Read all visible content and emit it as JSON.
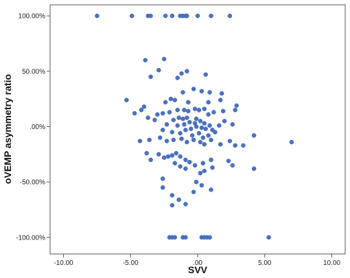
{
  "chart_data": {
    "type": "scatter",
    "title": "",
    "xlabel": "SVV",
    "ylabel": "oVEMP asymmetry ratio",
    "xlim": [
      -11,
      11
    ],
    "ylim": [
      -115,
      110
    ],
    "x_ticks": [
      -10,
      -5,
      0,
      5,
      10
    ],
    "x_tick_labels": [
      "-10.00",
      "-5.00",
      ".00",
      "5.00",
      "10.00"
    ],
    "y_ticks": [
      100,
      50,
      0,
      -50,
      -100
    ],
    "y_tick_labels": [
      "100.00%",
      "50.00%",
      ".00%",
      "-50.00%",
      "-100.00%"
    ],
    "grid": false,
    "legend": "none",
    "marker_color": "#4a72c4",
    "series": [
      {
        "points": [
          [
            -7.5,
            100
          ],
          [
            -4.9,
            100
          ],
          [
            -3.7,
            100
          ],
          [
            -3.5,
            100
          ],
          [
            -2.4,
            100
          ],
          [
            -1.9,
            100
          ],
          [
            -1.3,
            100
          ],
          [
            -1.1,
            100
          ],
          [
            -0.9,
            100
          ],
          [
            -0.8,
            100
          ],
          [
            0.0,
            100
          ],
          [
            1.0,
            100
          ],
          [
            2.4,
            100
          ],
          [
            -2.5,
            61
          ],
          [
            -3.9,
            60
          ],
          [
            -2.9,
            51
          ],
          [
            -1.2,
            48
          ],
          [
            -0.8,
            50
          ],
          [
            0.6,
            47
          ],
          [
            -3.5,
            45
          ],
          [
            -1.5,
            44
          ],
          [
            -0.3,
            34
          ],
          [
            0.3,
            32
          ],
          [
            0.9,
            31
          ],
          [
            -1.1,
            31
          ],
          [
            1.8,
            30
          ],
          [
            -5.3,
            24
          ],
          [
            -2.0,
            25
          ],
          [
            -1.7,
            24
          ],
          [
            -2.4,
            22
          ],
          [
            -0.7,
            22
          ],
          [
            0.8,
            22
          ],
          [
            1.7,
            24
          ],
          [
            -4.0,
            18
          ],
          [
            -4.2,
            15
          ],
          [
            -4.7,
            12
          ],
          [
            -3.0,
            11
          ],
          [
            -2.6,
            12
          ],
          [
            -2.1,
            13
          ],
          [
            -1.5,
            15
          ],
          [
            -1.0,
            15
          ],
          [
            -0.7,
            14
          ],
          [
            -0.2,
            16
          ],
          [
            0.1,
            15
          ],
          [
            0.5,
            16
          ],
          [
            0.8,
            11
          ],
          [
            1.2,
            13
          ],
          [
            1.9,
            14
          ],
          [
            2.8,
            15
          ],
          [
            2.9,
            19
          ],
          [
            -3.7,
            8
          ],
          [
            -3.2,
            6
          ],
          [
            -1.8,
            6
          ],
          [
            -1.4,
            8
          ],
          [
            -1.1,
            7
          ],
          [
            -0.8,
            8
          ],
          [
            -0.6,
            4
          ],
          [
            -0.2,
            3
          ],
          [
            -0.1,
            7
          ],
          [
            0.2,
            5
          ],
          [
            0.5,
            3
          ],
          [
            0.9,
            1
          ],
          [
            -2.3,
            2
          ],
          [
            -1.5,
            1
          ],
          [
            -1.0,
            2
          ],
          [
            -0.5,
            -2
          ],
          [
            -0.1,
            0
          ],
          [
            0.3,
            -1
          ],
          [
            0.6,
            -2
          ],
          [
            1.1,
            -3
          ],
          [
            1.6,
            1
          ],
          [
            2.0,
            5
          ],
          [
            2.6,
            2
          ],
          [
            -2.6,
            -3
          ],
          [
            -1.9,
            -5
          ],
          [
            -1.3,
            -6
          ],
          [
            -0.9,
            -3
          ],
          [
            -0.4,
            -8
          ],
          [
            0.1,
            -6
          ],
          [
            0.4,
            -10
          ],
          [
            0.8,
            -8
          ],
          [
            1.3,
            -5
          ],
          [
            -4.3,
            -13
          ],
          [
            -3.6,
            -12
          ],
          [
            -2.8,
            -10
          ],
          [
            -2.3,
            -13
          ],
          [
            -1.8,
            -12
          ],
          [
            -1.2,
            -11
          ],
          [
            -0.8,
            -14
          ],
          [
            -0.3,
            -12
          ],
          [
            0.2,
            -14
          ],
          [
            0.5,
            -16
          ],
          [
            1.0,
            -12
          ],
          [
            1.7,
            -16
          ],
          [
            2.4,
            -13
          ],
          [
            2.8,
            -17
          ],
          [
            3.4,
            -17
          ],
          [
            4.2,
            -8
          ],
          [
            7.0,
            -14
          ],
          [
            -3.8,
            -24
          ],
          [
            -3.5,
            -30
          ],
          [
            -2.9,
            -25
          ],
          [
            -2.5,
            -28
          ],
          [
            -2.2,
            -27
          ],
          [
            -1.9,
            -26
          ],
          [
            -1.6,
            -24
          ],
          [
            -1.3,
            -27
          ],
          [
            -0.9,
            -30
          ],
          [
            -0.6,
            -32
          ],
          [
            -0.2,
            -35
          ],
          [
            0.4,
            -33
          ],
          [
            1.0,
            -30
          ],
          [
            2.3,
            -31
          ],
          [
            2.6,
            -35
          ],
          [
            -1.7,
            -33
          ],
          [
            -1.3,
            -36
          ],
          [
            -0.9,
            -38
          ],
          [
            0.5,
            -40
          ],
          [
            1.1,
            -37
          ],
          [
            0.2,
            -42
          ],
          [
            -2.6,
            -47
          ],
          [
            -0.1,
            -50
          ],
          [
            0.3,
            -53
          ],
          [
            -2.6,
            -55
          ],
          [
            1.0,
            -57
          ],
          [
            -0.3,
            -59
          ],
          [
            -1.9,
            -62
          ],
          [
            -1.4,
            -66
          ],
          [
            -0.9,
            -70
          ],
          [
            -1.9,
            -71
          ],
          [
            4.2,
            -38
          ],
          [
            -2.1,
            -100
          ],
          [
            -1.9,
            -100
          ],
          [
            -1.7,
            -100
          ],
          [
            -1.1,
            -100
          ],
          [
            -0.9,
            -100
          ],
          [
            0.3,
            -100
          ],
          [
            0.5,
            -100
          ],
          [
            0.7,
            -100
          ],
          [
            0.9,
            -100
          ],
          [
            5.3,
            -100
          ]
        ]
      }
    ]
  }
}
